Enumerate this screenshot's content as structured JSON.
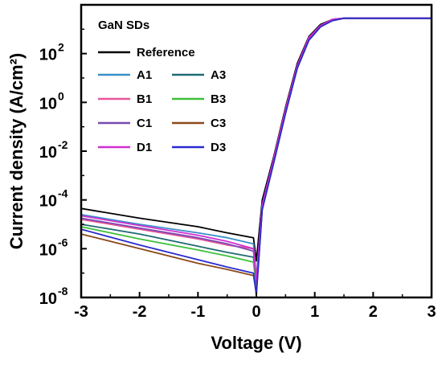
{
  "chart_data": {
    "type": "line",
    "title": "",
    "xlabel": "Voltage (V)",
    "ylabel": "Current density (A/cm²)",
    "xlim": [
      -3,
      3
    ],
    "ylim_log10": [
      -8,
      4
    ],
    "yscale": "log",
    "grid": false,
    "x_ticks": [
      "-3",
      "-2",
      "-1",
      "0",
      "1",
      "2",
      "3"
    ],
    "y_ticks": [
      {
        "base": "10",
        "exp": "-8"
      },
      {
        "base": "10",
        "exp": "-6"
      },
      {
        "base": "10",
        "exp": "-4"
      },
      {
        "base": "10",
        "exp": "-2"
      },
      {
        "base": "10",
        "exp": "0"
      },
      {
        "base": "10",
        "exp": "2"
      }
    ],
    "legend": {
      "title": "GaN SDs",
      "placement": "top-left",
      "entries": [
        {
          "name": "Reference",
          "color": "#000000"
        },
        {
          "name": "A1",
          "color": "#3a8fc8"
        },
        {
          "name": "A3",
          "color": "#1f6b73"
        },
        {
          "name": "B1",
          "color": "#e8559a"
        },
        {
          "name": "B3",
          "color": "#3dbf3a"
        },
        {
          "name": "C1",
          "color": "#7a4ab0"
        },
        {
          "name": "C3",
          "color": "#8a4a1a"
        },
        {
          "name": "D1",
          "color": "#d12ed1"
        },
        {
          "name": "D3",
          "color": "#2a2ad1"
        }
      ]
    },
    "series": [
      {
        "name": "Reference",
        "color": "#000000",
        "x": [
          -3,
          -2,
          -1,
          -0.5,
          -0.05,
          0.0,
          0.1,
          0.3,
          0.5,
          0.7,
          0.9,
          1.1,
          1.3,
          1.5,
          2,
          3
        ],
        "log10y": [
          -4.35,
          -4.75,
          -5.1,
          -5.35,
          -5.55,
          -6.5,
          -4.0,
          -2.2,
          -0.2,
          1.6,
          2.7,
          3.2,
          3.4,
          3.45,
          3.45,
          3.45
        ]
      },
      {
        "name": "A1",
        "color": "#3a8fc8",
        "x": [
          -3,
          -2,
          -1,
          -0.5,
          -0.05,
          0.0,
          0.1,
          0.3,
          0.5,
          0.7,
          0.9,
          1.1,
          1.3,
          1.5,
          2,
          3
        ],
        "log10y": [
          -4.6,
          -5.0,
          -5.35,
          -5.55,
          -5.8,
          -7.2,
          -4.2,
          -2.3,
          -0.3,
          1.5,
          2.65,
          3.15,
          3.4,
          3.45,
          3.45,
          3.45
        ]
      },
      {
        "name": "A3",
        "color": "#1f6b73",
        "x": [
          -3,
          -2,
          -1,
          -0.5,
          -0.05,
          0.0,
          0.1,
          0.3,
          0.5,
          0.7,
          0.9,
          1.1,
          1.3,
          1.5,
          2,
          3
        ],
        "log10y": [
          -5.0,
          -5.4,
          -5.9,
          -6.15,
          -6.35,
          -7.6,
          -4.3,
          -2.35,
          -0.35,
          1.45,
          2.6,
          3.15,
          3.4,
          3.45,
          3.45,
          3.45
        ]
      },
      {
        "name": "B1",
        "color": "#e8559a",
        "x": [
          -3,
          -2,
          -1,
          -0.5,
          -0.05,
          0.0,
          0.1,
          0.3,
          0.5,
          0.7,
          0.9,
          1.1,
          1.3,
          1.5,
          2,
          3
        ],
        "log10y": [
          -4.8,
          -5.2,
          -5.6,
          -5.85,
          -6.0,
          -7.3,
          -4.25,
          -2.3,
          -0.3,
          1.5,
          2.65,
          3.15,
          3.4,
          3.45,
          3.45,
          3.45
        ]
      },
      {
        "name": "B3",
        "color": "#3dbf3a",
        "x": [
          -3,
          -2,
          -1,
          -0.5,
          -0.05,
          0.0,
          0.1,
          0.3,
          0.5,
          0.7,
          0.9,
          1.1,
          1.3,
          1.5,
          2,
          3
        ],
        "log10y": [
          -5.1,
          -5.6,
          -6.05,
          -6.3,
          -6.55,
          -7.7,
          -4.35,
          -2.4,
          -0.4,
          1.4,
          2.6,
          3.1,
          3.4,
          3.45,
          3.45,
          3.45
        ]
      },
      {
        "name": "C1",
        "color": "#7a4ab0",
        "x": [
          -3,
          -2,
          -1,
          -0.5,
          -0.05,
          0.0,
          0.1,
          0.3,
          0.5,
          0.7,
          0.9,
          1.1,
          1.3,
          1.5,
          2,
          3
        ],
        "log10y": [
          -4.75,
          -5.15,
          -5.55,
          -5.8,
          -6.1,
          -7.4,
          -4.25,
          -2.3,
          -0.3,
          1.5,
          2.65,
          3.15,
          3.4,
          3.45,
          3.45,
          3.45
        ]
      },
      {
        "name": "C3",
        "color": "#8a4a1a",
        "x": [
          -3,
          -2,
          -1,
          -0.5,
          -0.05,
          0.0,
          0.1,
          0.3,
          0.5,
          0.7,
          0.9,
          1.1,
          1.3,
          1.5,
          2,
          3
        ],
        "log10y": [
          -5.4,
          -6.0,
          -6.6,
          -6.85,
          -7.1,
          -7.8,
          -4.4,
          -2.45,
          -0.45,
          1.4,
          2.55,
          3.1,
          3.35,
          3.45,
          3.45,
          3.45
        ]
      },
      {
        "name": "D1",
        "color": "#d12ed1",
        "x": [
          -3,
          -2,
          -1,
          -0.5,
          -0.05,
          0.0,
          0.1,
          0.3,
          0.5,
          0.7,
          0.9,
          1.1,
          1.3,
          1.5,
          2,
          3
        ],
        "log10y": [
          -4.65,
          -5.05,
          -5.45,
          -5.7,
          -6.0,
          -7.3,
          -4.2,
          -2.3,
          -0.3,
          1.5,
          2.65,
          3.15,
          3.4,
          3.45,
          3.45,
          3.45
        ]
      },
      {
        "name": "D3",
        "color": "#2a2ad1",
        "x": [
          -3,
          -2,
          -1,
          -0.5,
          -0.05,
          0.0,
          0.1,
          0.3,
          0.5,
          0.7,
          0.9,
          1.1,
          1.3,
          1.5,
          2,
          3
        ],
        "log10y": [
          -5.2,
          -5.85,
          -6.45,
          -6.75,
          -7.0,
          -7.9,
          -4.4,
          -2.45,
          -0.45,
          1.4,
          2.55,
          3.1,
          3.35,
          3.45,
          3.45,
          3.45
        ]
      }
    ]
  }
}
